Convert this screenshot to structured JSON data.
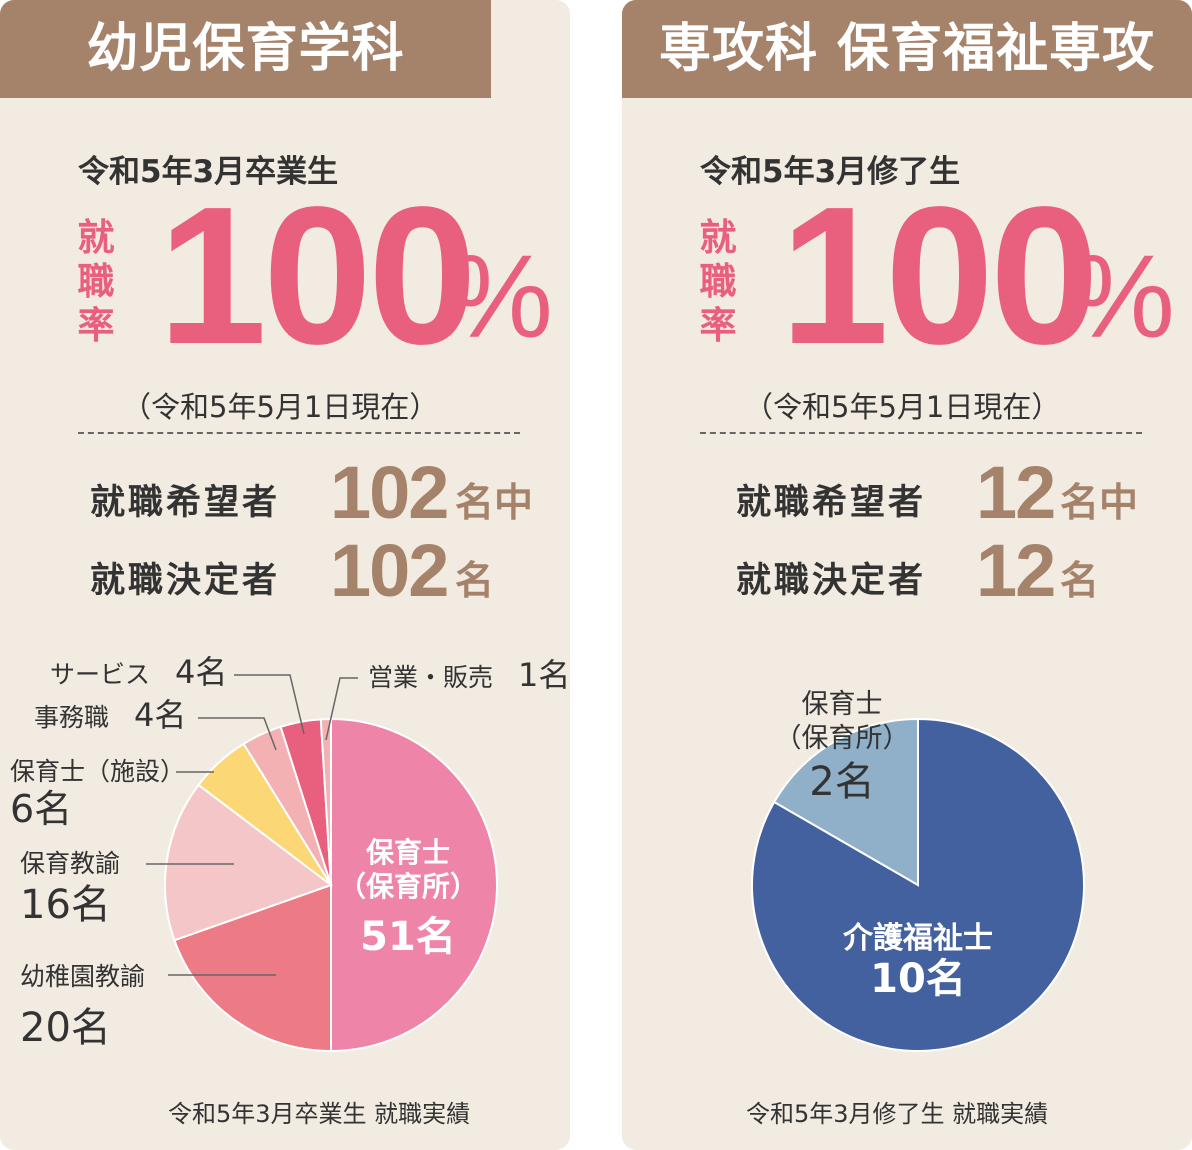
{
  "left": {
    "title": "幼児保育学科",
    "graduates": "令和5年3月卒業生",
    "rate_label": [
      "就",
      "職",
      "率"
    ],
    "rate_value": "100",
    "rate_unit": "%",
    "as_of": "（令和5年5月1日現在）",
    "applicants_label": "就職希望者",
    "applicants_value": "102",
    "applicants_unit": "名中",
    "employed_label": "就職決定者",
    "employed_value": "102",
    "employed_unit": "名",
    "caption": "令和5年3月卒業生 就職実績"
  },
  "right": {
    "title": "専攻科 保育福祉専攻",
    "graduates": "令和5年3月修了生",
    "rate_label": [
      "就",
      "職",
      "率"
    ],
    "rate_value": "100",
    "rate_unit": "%",
    "as_of": "（令和5年5月1日現在）",
    "applicants_label": "就職希望者",
    "applicants_value": "12",
    "applicants_unit": "名中",
    "employed_label": "就職決定者",
    "employed_value": "12",
    "employed_unit": "名",
    "caption": "令和5年3月修了生 就職実績"
  },
  "chart_data": [
    {
      "type": "pie",
      "title": "",
      "unit": "名",
      "slices": [
        {
          "label": "保育士（保育所）",
          "label_lines": [
            "保育士",
            "（保育所）"
          ],
          "value": 51,
          "value_text": "51名",
          "color": "#ee84a8"
        },
        {
          "label": "幼稚園教諭",
          "label_lines": [
            "幼稚園教諭"
          ],
          "value": 20,
          "value_text": "20名",
          "color": "#ec7b86"
        },
        {
          "label": "保育教諭",
          "label_lines": [
            "保育教諭"
          ],
          "value": 16,
          "value_text": "16名",
          "color": "#f5c6c8"
        },
        {
          "label": "保育士（施設）",
          "label_lines": [
            "保育士（施設）"
          ],
          "value": 6,
          "value_text": "6名",
          "color": "#fbd775"
        },
        {
          "label": "事務職",
          "label_lines": [
            "事務職"
          ],
          "value": 4,
          "value_text": "4名",
          "color": "#f3b1b4"
        },
        {
          "label": "サービス",
          "label_lines": [
            "サービス"
          ],
          "value": 4,
          "value_text": "4名",
          "color": "#e9607f"
        },
        {
          "label": "営業・販売",
          "label_lines": [
            "営業・販売"
          ],
          "value": 1,
          "value_text": "1名",
          "color": "#f3b1b4"
        }
      ]
    },
    {
      "type": "pie",
      "title": "",
      "unit": "名",
      "slices": [
        {
          "label": "介護福祉士",
          "label_lines": [
            "介護福祉士"
          ],
          "value": 10,
          "value_text": "10名",
          "color": "#43619f"
        },
        {
          "label": "保育士（保育所）",
          "label_lines": [
            "保育士",
            "（保育所）"
          ],
          "value": 2,
          "value_text": "2名",
          "color": "#8fb0c8"
        }
      ]
    }
  ]
}
